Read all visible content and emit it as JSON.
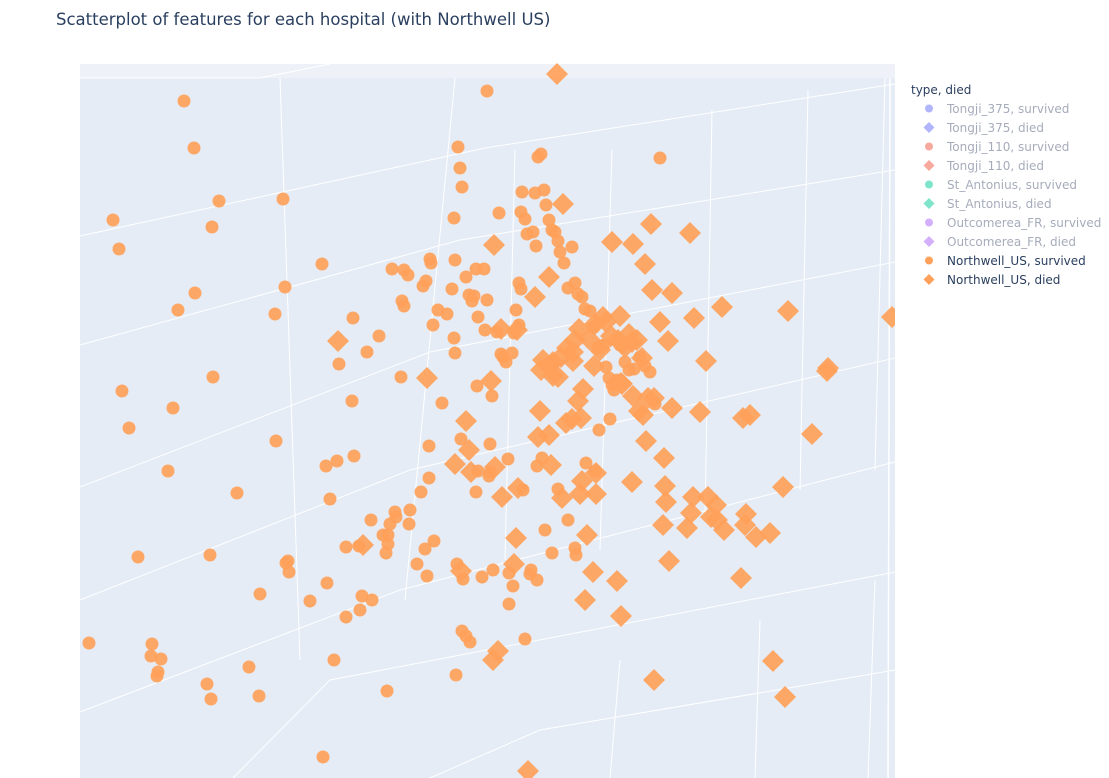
{
  "chart_data": {
    "type": "scatter",
    "title": "Scatterplot of features for each hospital (with Northwell US)",
    "legend_title": "type, died",
    "legend_position": "right",
    "grid": true,
    "background": "#e5ecf6",
    "traces": [
      {
        "name": "Tongji_375, survived",
        "symbol": "circle",
        "color": "#636efa",
        "visible": false
      },
      {
        "name": "Tongji_375, died",
        "symbol": "diamond",
        "color": "#636efa",
        "visible": false
      },
      {
        "name": "Tongji_110, survived",
        "symbol": "circle",
        "color": "#ef553b",
        "visible": false
      },
      {
        "name": "Tongji_110, died",
        "symbol": "diamond",
        "color": "#ef553b",
        "visible": false
      },
      {
        "name": "St_Antonius, survived",
        "symbol": "circle",
        "color": "#00cc96",
        "visible": false
      },
      {
        "name": "St_Antonius, died",
        "symbol": "diamond",
        "color": "#00cc96",
        "visible": false
      },
      {
        "name": "Outcomerea_FR, survived",
        "symbol": "circle",
        "color": "#ab63fa",
        "visible": false
      },
      {
        "name": "Outcomerea_FR, died",
        "symbol": "diamond",
        "color": "#ab63fa",
        "visible": false
      },
      {
        "name": "Northwell_US, survived",
        "symbol": "circle",
        "color": "#ffa15a",
        "visible": true,
        "x": [
          184,
          194,
          113,
          119,
          212,
          219,
          283,
          178,
          195,
          275,
          285,
          122,
          213,
          173,
          129,
          276,
          168,
          237,
          138,
          210,
          89,
          152,
          151,
          161,
          157,
          158,
          207,
          211,
          249,
          259,
          286,
          323,
          289,
          288,
          260,
          310,
          327,
          360,
          346,
          334,
          362,
          330,
          326,
          354,
          337,
          339,
          322,
          367,
          353,
          352,
          379,
          383,
          388,
          390,
          395,
          392,
          404,
          408,
          402,
          404,
          423,
          426,
          433,
          431,
          430,
          438,
          447,
          454,
          455,
          452,
          454,
          455,
          458,
          460,
          462,
          466,
          469,
          474,
          476,
          472,
          477,
          478,
          484,
          487,
          485,
          487,
          490,
          492,
          499,
          497,
          501,
          503,
          506,
          512,
          514,
          516,
          519,
          521,
          519,
          521,
          522,
          525,
          527,
          533,
          536,
          535,
          538,
          541,
          544,
          546,
          549,
          552,
          555,
          558,
          560,
          564,
          568,
          572,
          575,
          578,
          582,
          585,
          590,
          594,
          598,
          601,
          604,
          606,
          609,
          612,
          614,
          617,
          620,
          625,
          629,
          634,
          640,
          645,
          650,
          655,
          660,
          401,
          442,
          429,
          461,
          478,
          476,
          490,
          508,
          489,
          523,
          542,
          537,
          410,
          396,
          429,
          421,
          409,
          388,
          417,
          427,
          372,
          371,
          346,
          359,
          386,
          425,
          434,
          457,
          463,
          482,
          493,
          509,
          513,
          530,
          537,
          545,
          552,
          558,
          568,
          575,
          586,
          595,
          599,
          610,
          576,
          531,
          509,
          462,
          466,
          470,
          525,
          456,
          387
        ],
        "y": [
          101,
          148,
          220,
          249,
          227,
          201,
          199,
          310,
          293,
          314,
          287,
          391,
          377,
          408,
          428,
          441,
          471,
          493,
          557,
          555,
          643,
          644,
          656,
          659,
          676,
          672,
          684,
          699,
          667,
          696,
          563,
          757,
          572,
          561,
          594,
          601,
          583,
          610,
          617,
          660,
          596,
          499,
          466,
          456,
          461,
          364,
          264,
          352,
          318,
          401,
          336,
          535,
          544,
          524,
          512,
          269,
          270,
          275,
          301,
          306,
          286,
          281,
          325,
          263,
          259,
          310,
          314,
          218,
          260,
          289,
          338,
          353,
          147,
          168,
          187,
          277,
          295,
          296,
          269,
          301,
          386,
          317,
          269,
          91,
          330,
          300,
          444,
          396,
          213,
          332,
          354,
          357,
          362,
          353,
          333,
          310,
          325,
          289,
          283,
          212,
          192,
          219,
          234,
          232,
          246,
          193,
          157,
          154,
          190,
          205,
          220,
          230,
          232,
          241,
          252,
          263,
          288,
          247,
          283,
          294,
          297,
          309,
          311,
          327,
          348,
          346,
          345,
          367,
          378,
          385,
          390,
          380,
          345,
          362,
          370,
          369,
          357,
          366,
          372,
          404,
          158,
          377,
          403,
          446,
          439,
          471,
          492,
          472,
          459,
          476,
          490,
          458,
          466,
          510,
          517,
          478,
          492,
          524,
          535,
          564,
          576,
          600,
          520,
          547,
          546,
          553,
          549,
          541,
          564,
          579,
          577,
          570,
          573,
          586,
          574,
          580,
          530,
          553,
          489,
          520,
          548,
          463,
          471,
          430,
          419,
          555,
          570,
          604,
          631,
          636,
          642,
          639,
          675,
          691
        ]
      },
      {
        "name": "Northwell_US, died",
        "symbol": "diamond",
        "color": "#ffa15a",
        "visible": true,
        "x": [
          557,
          563,
          494,
          549,
          535,
          651,
          633,
          690,
          612,
          645,
          652,
          672,
          620,
          694,
          722,
          788,
          660,
          668,
          642,
          706,
          338,
          427,
          491,
          466,
          455,
          495,
          551,
          573,
          581,
          622,
          639,
          654,
          643,
          672,
          700,
          743,
          750,
          812,
          827,
          828,
          892,
          646,
          664,
          580,
          596,
          582,
          596,
          632,
          665,
          693,
          716,
          711,
          745,
          746,
          783,
          663,
          687,
          741,
          773,
          785,
          654,
          621,
          585,
          593,
          617,
          669,
          666,
          691,
          708,
          717,
          724,
          756,
          770,
          528,
          363,
          461,
          493,
          498,
          516,
          514,
          518,
          502,
          540,
          562,
          587,
          538,
          549,
          566,
          572,
          578,
          583,
          558,
          543,
          517,
          501,
          469,
          471,
          553,
          541,
          549,
          553,
          561,
          567,
          573,
          575,
          579,
          589,
          595,
          603,
          606,
          611,
          618,
          622,
          625,
          629,
          632,
          637,
          600,
          594,
          621,
          633,
          648
        ],
        "y": [
          74,
          204,
          245,
          277,
          297,
          224,
          244,
          233,
          242,
          264,
          290,
          293,
          316,
          318,
          307,
          311,
          322,
          341,
          358,
          361,
          341,
          378,
          381,
          421,
          464,
          467,
          465,
          361,
          418,
          384,
          411,
          398,
          415,
          408,
          412,
          418,
          415,
          434,
          371,
          368,
          317,
          441,
          458,
          494,
          494,
          481,
          473,
          482,
          486,
          497,
          505,
          517,
          525,
          514,
          487,
          525,
          528,
          578,
          661,
          697,
          680,
          616,
          600,
          572,
          581,
          561,
          502,
          513,
          497,
          520,
          530,
          537,
          533,
          771,
          545,
          571,
          660,
          651,
          538,
          564,
          488,
          497,
          411,
          498,
          535,
          437,
          435,
          423,
          419,
          401,
          389,
          377,
          360,
          330,
          329,
          450,
          472,
          376,
          370,
          366,
          362,
          357,
          348,
          352,
          340,
          329,
          339,
          324,
          317,
          322,
          336,
          340,
          344,
          347,
          334,
          342,
          340,
          350,
          366,
          383,
          396,
          398
        ]
      }
    ]
  }
}
